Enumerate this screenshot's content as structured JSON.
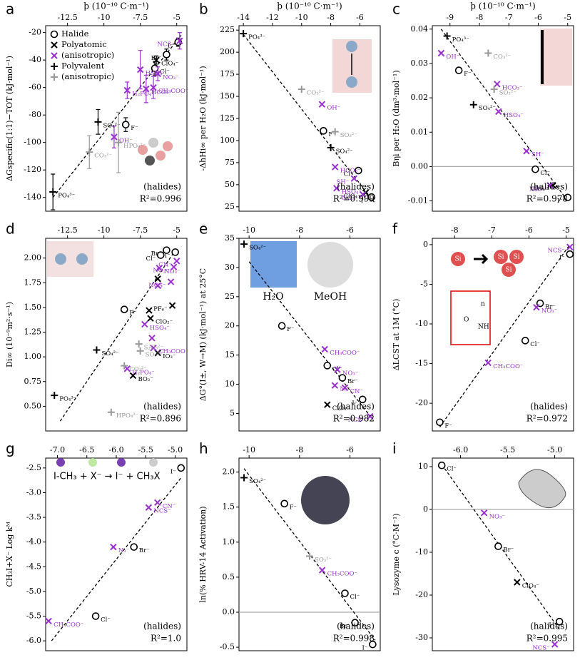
{
  "chart_data": [
    {
      "type": "scatter",
      "letter": "a",
      "xlabel": "ϸ (10⁻¹⁰ C·m⁻¹)",
      "ylabel": "ΔGspecific(1:1)−TOT (kJ·mol⁻¹)",
      "xlim": [
        -14,
        -4.3
      ],
      "ylim": [
        -150,
        -15
      ],
      "xticks": [
        -12.5,
        -10,
        -7.5,
        -5
      ],
      "yticks": [
        -140,
        -120,
        -100,
        -80,
        -60,
        -40,
        -20
      ],
      "annotation": "(halides)",
      "r2": "R²=0.996",
      "legend": "upper left",
      "fit": {
        "x": [
          -13.5,
          -4.7
        ],
        "y": [
          -140,
          -22
        ]
      },
      "series": [
        {
          "name": "Halide",
          "marker": "circle",
          "color": "#000000",
          "x": [
            -4.9,
            -5.7,
            -6.5,
            -8.5
          ],
          "values": [
            -27,
            -36,
            -46,
            -87
          ],
          "errors": [
            3,
            4,
            5,
            5
          ],
          "point_labels": [
            "I⁻",
            "Br⁻",
            "Cl⁻",
            "F⁻"
          ]
        },
        {
          "name": "Polyatomic",
          "marker": "x",
          "color": "#000000",
          "x": [
            -6.4
          ],
          "values": [
            -40
          ],
          "errors": [
            3
          ],
          "point_labels": [
            "ClO₄⁻"
          ]
        },
        {
          "name": "(anisotropic)",
          "marker": "x",
          "color": "#9b30d0",
          "x": [
            -4.8,
            -6.3,
            -7.5,
            -8.4,
            -6.6,
            -7.1,
            -9.3
          ],
          "values": [
            -26,
            -50,
            -47,
            -62,
            -60,
            -61,
            -96
          ],
          "errors": [
            6,
            5,
            14,
            6,
            8,
            10,
            8
          ],
          "point_labels": [
            "NCS⁻",
            "NO₃⁻",
            "HSO₄⁻",
            "H₂PO₄⁻",
            "CH₃COO⁻",
            "HCO₃⁻",
            "OH⁻"
          ]
        },
        {
          "name": "Polyvalent",
          "marker": "plus",
          "color": "#000000",
          "x": [
            -10.4,
            -13.5
          ],
          "values": [
            -85,
            -136
          ],
          "errors": [
            9,
            13
          ],
          "point_labels": [
            "SO₄²⁻",
            "PO₄³⁻"
          ]
        },
        {
          "name": "(anisotropic)",
          "marker": "plus",
          "color": "#999999",
          "x": [
            -11,
            -9
          ],
          "values": [
            -107,
            -100
          ],
          "errors": [
            12,
            22
          ],
          "point_labels": [
            "CO₃²⁻",
            "HPO₄²⁻"
          ]
        }
      ]
    },
    {
      "type": "scatter",
      "letter": "b",
      "xlabel": "ϸ (10⁻¹⁰ C·m⁻¹)",
      "ylabel": "-ΔhHi∞ per H₂O (kJ·mol⁻¹)",
      "xlim": [
        -14.3,
        -4.6
      ],
      "ylim": [
        20,
        230
      ],
      "xticks": [
        -14,
        -12,
        -10,
        -8,
        -6
      ],
      "yticks": [
        25,
        50,
        75,
        100,
        125,
        150,
        175,
        200,
        225
      ],
      "annotation": "(halides)",
      "r2": "R²=0.999",
      "fit": {
        "x": [
          -14,
          -5
        ],
        "y": [
          220,
          30
        ]
      },
      "series": [
        {
          "marker": "circle",
          "color": "#000000",
          "x": [
            -8.5,
            -6.1,
            -5.2
          ],
          "values": [
            111,
            66,
            36
          ],
          "point_labels": [
            "F⁻",
            "Cl⁻",
            "I⁻"
          ]
        },
        {
          "marker": "x",
          "color": "#000000",
          "x": [
            -5.6
          ],
          "values": [
            41
          ],
          "point_labels": [
            "ClO₄⁻"
          ]
        },
        {
          "marker": "x",
          "color": "#9b30d0",
          "x": [
            -8.6,
            -7.7,
            -6.4,
            -7.6,
            -5.8
          ],
          "values": [
            141,
            70,
            57,
            46,
            39
          ],
          "point_labels": [
            "OH⁻",
            "HCO₃⁻",
            "SH⁻",
            "HSO₄⁻",
            "NO₃⁻"
          ]
        },
        {
          "marker": "plus",
          "color": "#000000",
          "x": [
            -14,
            -8
          ],
          "values": [
            221,
            92
          ],
          "point_labels": [
            "PO₄³⁻",
            "SO₄²⁻"
          ]
        },
        {
          "marker": "plus",
          "color": "#999999",
          "x": [
            -10,
            -7.7
          ],
          "values": [
            158,
            110
          ],
          "point_labels": [
            "CO₃²⁻",
            "SO₃²⁻"
          ]
        }
      ]
    },
    {
      "type": "scatter",
      "letter": "c",
      "xlabel": "ϸ (10⁻¹⁰ C·m⁻¹)",
      "ylabel": "Bηi per H₂O (dm³·mol⁻¹)",
      "xlim": [
        -9.6,
        -4.8
      ],
      "ylim": [
        -0.013,
        0.041
      ],
      "xticks": [
        -9,
        -8,
        -7,
        -6,
        -5
      ],
      "yticks": [
        -0.01,
        {
          "value": 0,
          "label": "0.00"
        },
        0.01,
        0.02,
        0.03,
        0.04
      ],
      "reference_line": 0,
      "annotation": "(halides)",
      "r2": "R²=0.978",
      "fit": {
        "x": [
          -9.3,
          -5
        ],
        "y": [
          0.04,
          -0.01
        ]
      },
      "series": [
        {
          "marker": "circle",
          "color": "#000000",
          "x": [
            -8.7,
            -6.1,
            -5
          ],
          "values": [
            0.028,
            -0.0008,
            -0.009
          ],
          "point_labels": [
            "F⁻",
            "Cl⁻",
            "I⁻"
          ]
        },
        {
          "marker": "x",
          "color": "#000000",
          "x": [
            -5.5
          ],
          "values": [
            -0.0055
          ],
          "point_labels": [
            "ClO₄⁻"
          ]
        },
        {
          "marker": "x",
          "color": "#9b30d0",
          "x": [
            -9.3,
            -7.4,
            -7.35,
            -6.4,
            -5.6
          ],
          "values": [
            0.033,
            0.024,
            0.016,
            0.0045,
            -0.0055
          ],
          "point_labels": [
            "OH⁻",
            "HCO₃⁻",
            "HSO₄⁻",
            "SH⁻",
            "NO₃⁻"
          ]
        },
        {
          "marker": "plus",
          "color": "#000000",
          "x": [
            -9.1,
            -8.2
          ],
          "values": [
            0.038,
            0.018
          ],
          "point_labels": [
            "PO₄³⁻",
            "SO₄²⁻"
          ]
        },
        {
          "marker": "plus",
          "color": "#999999",
          "x": [
            -7.7,
            -7.5
          ],
          "values": [
            0.033,
            0.0225
          ],
          "point_labels": [
            "CO₃²⁻",
            "SO₃²⁻"
          ]
        }
      ]
    },
    {
      "type": "scatter",
      "letter": "d",
      "ylabel": "Di∞ (10⁻⁹m²·s⁻¹)",
      "xlim": [
        -14,
        -4.3
      ],
      "ylim": [
        0.25,
        2.2
      ],
      "xticks": [
        -12.5,
        -10,
        -7.5,
        -5
      ],
      "yticks": [
        {
          "value": 0.5,
          "label": "0.50"
        },
        {
          "value": 0.75,
          "label": "0.75"
        },
        {
          "value": 1,
          "label": "1.00"
        },
        {
          "value": 1.25,
          "label": "1.25"
        },
        {
          "value": 1.5,
          "label": "1.50"
        },
        {
          "value": 1.75,
          "label": "1.75"
        },
        {
          "value": 2,
          "label": "2.00"
        }
      ],
      "annotation": "(halides)",
      "r2": "R²=0.896",
      "fit": {
        "x": [
          -13,
          -5
        ],
        "y": [
          0.35,
          2.1
        ]
      },
      "series": [
        {
          "marker": "circle",
          "color": "#000000",
          "x": [
            -5.1,
            -5.7,
            -6.1,
            -8.6
          ],
          "values": [
            2.06,
            2.08,
            2.03,
            1.48
          ],
          "point_labels": [
            "I⁻",
            "Br⁻",
            "Cl⁻",
            "F⁻"
          ]
        },
        {
          "marker": "x",
          "color": "#000000",
          "x": [
            -6.3,
            -6.8,
            -5.3,
            -6.3,
            -8,
            -6.9
          ],
          "values": [
            1.79,
            1.39,
            1.52,
            1.04,
            0.81,
            1.47
          ],
          "point_labels": [
            null,
            "ClO₂⁻",
            "PF₆⁻",
            "IO₃⁻",
            "BO₂⁻",
            null
          ]
        },
        {
          "marker": "x",
          "color": "#9b30d0",
          "x": [
            -6.2,
            -5.2,
            -5,
            -5.4,
            -7.2,
            -6.6,
            -8.4,
            -6.7,
            -6.3
          ],
          "values": [
            1.9,
            1.91,
            1.97,
            1.76,
            1.33,
            1.09,
            0.88,
            1.19,
            1.72
          ],
          "point_labels": [
            "NO₃⁻",
            "NO₂⁻",
            "CN⁻",
            "NCS⁻",
            "HSO₄⁻",
            "CH₃COO⁻",
            "H₂PO₄⁻",
            null,
            null
          ]
        },
        {
          "marker": "plus",
          "color": "#000000",
          "x": [
            -10.5,
            -13.4
          ],
          "values": [
            1.07,
            0.61
          ],
          "point_labels": [
            "SO₄²⁻",
            "PO₄³⁻"
          ]
        },
        {
          "marker": "plus",
          "color": "#999999",
          "x": [
            -7.6,
            -7.5,
            -8.6,
            -9.5
          ],
          "values": [
            1.13,
            1.06,
            0.91,
            0.44
          ],
          "point_labels": [
            "S₂O₃²⁻",
            "SO₃²⁻",
            "CO₃²⁻",
            "HPO₄²⁻"
          ]
        }
      ]
    },
    {
      "type": "scatter",
      "letter": "e",
      "ylabel": "ΔG°(I±, W→M) (kJ·mol⁻¹) at 25°C",
      "xlim": [
        -10.4,
        -4.8
      ],
      "ylim": [
        2,
        35
      ],
      "xticks": [
        -10,
        -8,
        -6
      ],
      "yticks": [
        5,
        10,
        15,
        20,
        25,
        30,
        35
      ],
      "annotation": "(halides)",
      "r2": "R²=0.982",
      "inset_labels": [
        "H₂O",
        "MeOH"
      ],
      "fit": {
        "x": [
          -10,
          -5.1
        ],
        "y": [
          31,
          4
        ]
      },
      "series": [
        {
          "marker": "circle",
          "color": "#000000",
          "x": [
            -8.7,
            -6.9,
            -6.3,
            -5.5
          ],
          "values": [
            20,
            13.2,
            11.1,
            7.4
          ],
          "point_labels": [
            "F⁻",
            "Cl⁻",
            "Br⁻",
            "I⁻"
          ]
        },
        {
          "marker": "x",
          "color": "#000000",
          "x": [
            -6.9
          ],
          "values": [
            6.5
          ],
          "point_labels": [
            "ClO₄⁻"
          ]
        },
        {
          "marker": "x",
          "color": "#9b30d0",
          "x": [
            -7,
            -6.5,
            -6.6,
            -6.2,
            -5.2
          ],
          "values": [
            16,
            12.5,
            9.8,
            9.4,
            4.5
          ],
          "point_labels": [
            "CH₃COO⁻",
            "NO₃⁻",
            "N₃⁻",
            "CN⁻",
            "NCS⁻"
          ]
        },
        {
          "marker": "plus",
          "color": "#000000",
          "x": [
            -10.2
          ],
          "values": [
            34
          ],
          "point_labels": [
            "SO₄²⁻"
          ]
        }
      ]
    },
    {
      "type": "scatter",
      "letter": "f",
      "ylabel": "ΔLCST at 1M (°C)",
      "xlim": [
        -8.6,
        -4.8
      ],
      "ylim": [
        -23.5,
        0.8
      ],
      "xticks": [
        -8,
        -7,
        -6,
        -5
      ],
      "yticks": [
        -20,
        -15,
        -10,
        -5,
        0
      ],
      "annotation": "(halides)",
      "r2": "R²=0.972",
      "inset_labels": [
        "Si",
        "Si",
        "Si",
        "Si",
        "O",
        "NH",
        "n"
      ],
      "fit": {
        "x": [
          -8.4,
          -4.9
        ],
        "y": [
          -23,
          0
        ]
      },
      "series": [
        {
          "marker": "circle",
          "color": "#000000",
          "x": [
            -4.9,
            -5.7,
            -6.1,
            -8.4
          ],
          "values": [
            -1.2,
            -7.4,
            -12.1,
            -22.4
          ],
          "point_labels": [
            "I⁻",
            "Br⁻",
            "Cl⁻",
            "F⁻"
          ]
        },
        {
          "marker": "x",
          "color": "#9b30d0",
          "x": [
            -4.9,
            -5.8,
            -7.1
          ],
          "values": [
            -0.3,
            -7.9,
            -14.9
          ],
          "point_labels": [
            "NCS⁻",
            "NO₃⁻",
            "CH₃COO⁻"
          ]
        }
      ]
    },
    {
      "type": "scatter",
      "letter": "g",
      "ylabel": "CH₃I+X⁻ Log kᴹ",
      "xlim": [
        -7.2,
        -4.8
      ],
      "ylim": [
        -6.2,
        -2.3
      ],
      "xticks": [
        {
          "value": -7,
          "label": "-7.0"
        },
        -6.5,
        {
          "value": -6,
          "label": "-6.0"
        },
        -5.5,
        {
          "value": -5,
          "label": "-5.0"
        }
      ],
      "yticks": [
        {
          "value": -6,
          "label": "-6.0"
        },
        -5.5,
        {
          "value": -5,
          "label": "-5.0"
        },
        -4.5,
        {
          "value": -4,
          "label": "-4.0"
        },
        -3.5,
        {
          "value": -3,
          "label": "-3.0"
        },
        -2.5
      ],
      "annotation": "(halides)",
      "r2": "R²=1.0",
      "inset_labels": [
        "I-CH₃ + X⁻ → I⁻ + CH₃X"
      ],
      "fit": {
        "x": [
          -7.1,
          -4.9
        ],
        "y": [
          -6,
          -2.7
        ]
      },
      "series": [
        {
          "marker": "circle",
          "color": "#000000",
          "x": [
            -4.9,
            -5.7,
            -6.35
          ],
          "values": [
            -2.5,
            -4.1,
            -5.5
          ],
          "point_labels": [
            "I⁻",
            "Br⁻",
            "Cl⁻"
          ]
        },
        {
          "marker": "x",
          "color": "#9b30d0",
          "x": [
            -5.3,
            -5.45,
            -6.05,
            -7.15
          ],
          "values": [
            -3.2,
            -3.3,
            -4.1,
            -5.6
          ],
          "point_labels": [
            "CN⁻",
            "NCS⁻",
            "N₃⁻",
            "CH₃COO⁻"
          ]
        }
      ]
    },
    {
      "type": "scatter",
      "letter": "h",
      "ylabel": "ln(% HRV-14 Activation)",
      "xlim": [
        -10.4,
        -4.8
      ],
      "ylim": [
        -0.55,
        2.2
      ],
      "xticks": [
        -10,
        -8,
        -6
      ],
      "yticks": [
        -0.5,
        {
          "value": 0,
          "label": "0.0"
        },
        0.5,
        {
          "value": 1,
          "label": "1.0"
        },
        1.5,
        {
          "value": 2,
          "label": "2.0"
        }
      ],
      "reference_line": 0,
      "annotation": "(halides)",
      "r2": "R²=0.998",
      "fit": {
        "x": [
          -10.2,
          -5
        ],
        "y": [
          2.05,
          -0.4
        ]
      },
      "series": [
        {
          "marker": "circle",
          "color": "#000000",
          "x": [
            -8.6,
            -6.2,
            -5.8,
            -5.1
          ],
          "values": [
            1.55,
            0.27,
            -0.15,
            -0.46
          ],
          "point_labels": [
            "F⁻",
            "Cl⁻",
            "Br⁻",
            "I⁻"
          ]
        },
        {
          "marker": "x",
          "color": "#9b30d0",
          "x": [
            -7.1
          ],
          "values": [
            0.6
          ],
          "point_labels": [
            "CH₃COO⁻"
          ]
        },
        {
          "marker": "plus",
          "color": "#000000",
          "x": [
            -10.2
          ],
          "values": [
            1.92
          ],
          "point_labels": [
            "SO₄²⁻"
          ]
        },
        {
          "marker": "plus",
          "color": "#999999",
          "x": [
            -7.6
          ],
          "values": [
            0.8
          ],
          "point_labels": [
            "SO₃²⁻"
          ]
        }
      ]
    },
    {
      "type": "scatter",
      "letter": "i",
      "ylabel": "Lysozyme c (°C·M⁻¹)",
      "xlim": [
        -6.3,
        -4.8
      ],
      "ylim": [
        -33,
        12
      ],
      "xticks": [
        {
          "value": -6,
          "label": "-6.0"
        },
        -5.5,
        {
          "value": -5,
          "label": "-5.0"
        }
      ],
      "yticks": [
        -30,
        -20,
        -10,
        0,
        10
      ],
      "reference_line": 0,
      "annotation": "(halides)",
      "r2": "R²=0.995",
      "fit": {
        "x": [
          -6.2,
          -4.95
        ],
        "y": [
          10.5,
          -28
        ]
      },
      "series": [
        {
          "marker": "circle",
          "color": "#000000",
          "x": [
            -6.2,
            -5.6,
            -4.95
          ],
          "values": [
            10.3,
            -8.6,
            -26.2
          ],
          "point_labels": [
            "Cl⁻",
            "Br⁻",
            "I⁻"
          ]
        },
        {
          "marker": "x",
          "color": "#000000",
          "x": [
            -5.4
          ],
          "values": [
            -17
          ],
          "point_labels": [
            "ClO₄⁻"
          ]
        },
        {
          "marker": "x",
          "color": "#9b30d0",
          "x": [
            -5.75,
            -5
          ],
          "values": [
            -0.8,
            -31.5
          ],
          "point_labels": [
            "NO₃⁻",
            "NCS⁻"
          ]
        }
      ]
    }
  ]
}
